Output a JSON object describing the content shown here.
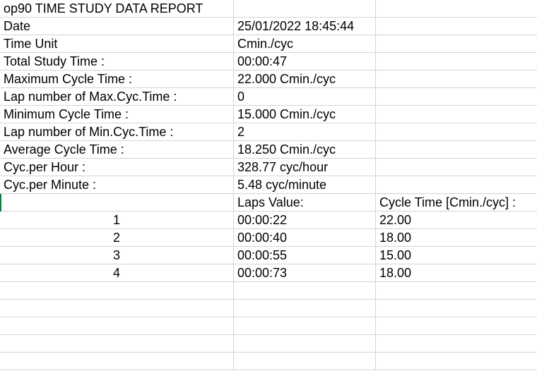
{
  "report": {
    "title": "op90 TIME STUDY DATA REPORT",
    "fields": [
      {
        "label": "Date",
        "value": "25/01/2022 18:45:44"
      },
      {
        "label": "Time Unit",
        "value": "Cmin./cyc"
      },
      {
        "label": "Total Study Time :",
        "value": "00:00:47"
      },
      {
        "label": "Maximum Cycle Time :",
        "value": "22.000 Cmin./cyc"
      },
      {
        "label": "Lap number of Max.Cyc.Time :",
        "value": "0"
      },
      {
        "label": "Minimum Cycle Time :",
        "value": "15.000 Cmin./cyc"
      },
      {
        "label": "Lap number of Min.Cyc.Time :",
        "value": "2"
      },
      {
        "label": "Average Cycle Time :",
        "value": "18.250 Cmin./cyc"
      },
      {
        "label": "Cyc.per Hour :",
        "value": "328.77 cyc/hour"
      },
      {
        "label": "Cyc.per Minute :",
        "value": "5.48 cyc/minute"
      }
    ],
    "laps_header": {
      "value_col": "Laps Value:",
      "cycle_col": "Cycle Time [Cmin./cyc] :"
    },
    "laps": [
      {
        "lap": "1",
        "value": "00:00:22",
        "cycle": "22.00"
      },
      {
        "lap": "2",
        "value": "00:00:40",
        "cycle": "18.00"
      },
      {
        "lap": "3",
        "value": "00:00:55",
        "cycle": "15.00"
      },
      {
        "lap": "4",
        "value": "00:00:73",
        "cycle": "18.00"
      }
    ]
  },
  "colors": {
    "gridline": "#d4d4d4",
    "selection_accent": "#107c41"
  }
}
